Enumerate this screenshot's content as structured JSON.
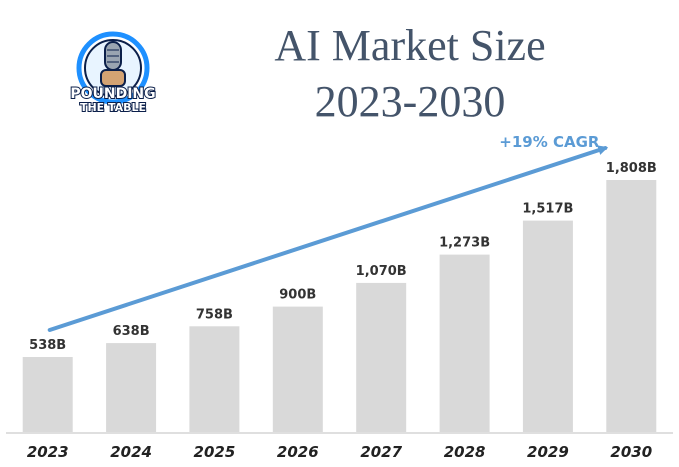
{
  "title": {
    "line1": "AI Market Size",
    "line2": "2023-2030"
  },
  "logo": {
    "text_top": "POUNDING",
    "text_bottom": "THE TABLE",
    "icon": "microphone-fist-logo"
  },
  "colors": {
    "bar": "#d9d9d9",
    "arrow": "#5b9bd5",
    "title": "#44546a",
    "axis": "#bfbfbf",
    "logo_ring": "#1e90ff",
    "logo_dark": "#0b1f4a"
  },
  "chart_data": {
    "type": "bar",
    "title": "AI Market Size 2023-2030",
    "categories": [
      "2023",
      "2024",
      "2025",
      "2026",
      "2027",
      "2028",
      "2029",
      "2030"
    ],
    "values": [
      538,
      638,
      758,
      900,
      1070,
      1273,
      1517,
      1808
    ],
    "value_labels": [
      "538B",
      "638B",
      "758B",
      "900B",
      "1,070B",
      "1,273B",
      "1,517B",
      "1,808B"
    ],
    "annotation": "+19% CAGR",
    "grid": false,
    "y_axis_visible": false,
    "ylim": [
      0,
      1808
    ]
  }
}
